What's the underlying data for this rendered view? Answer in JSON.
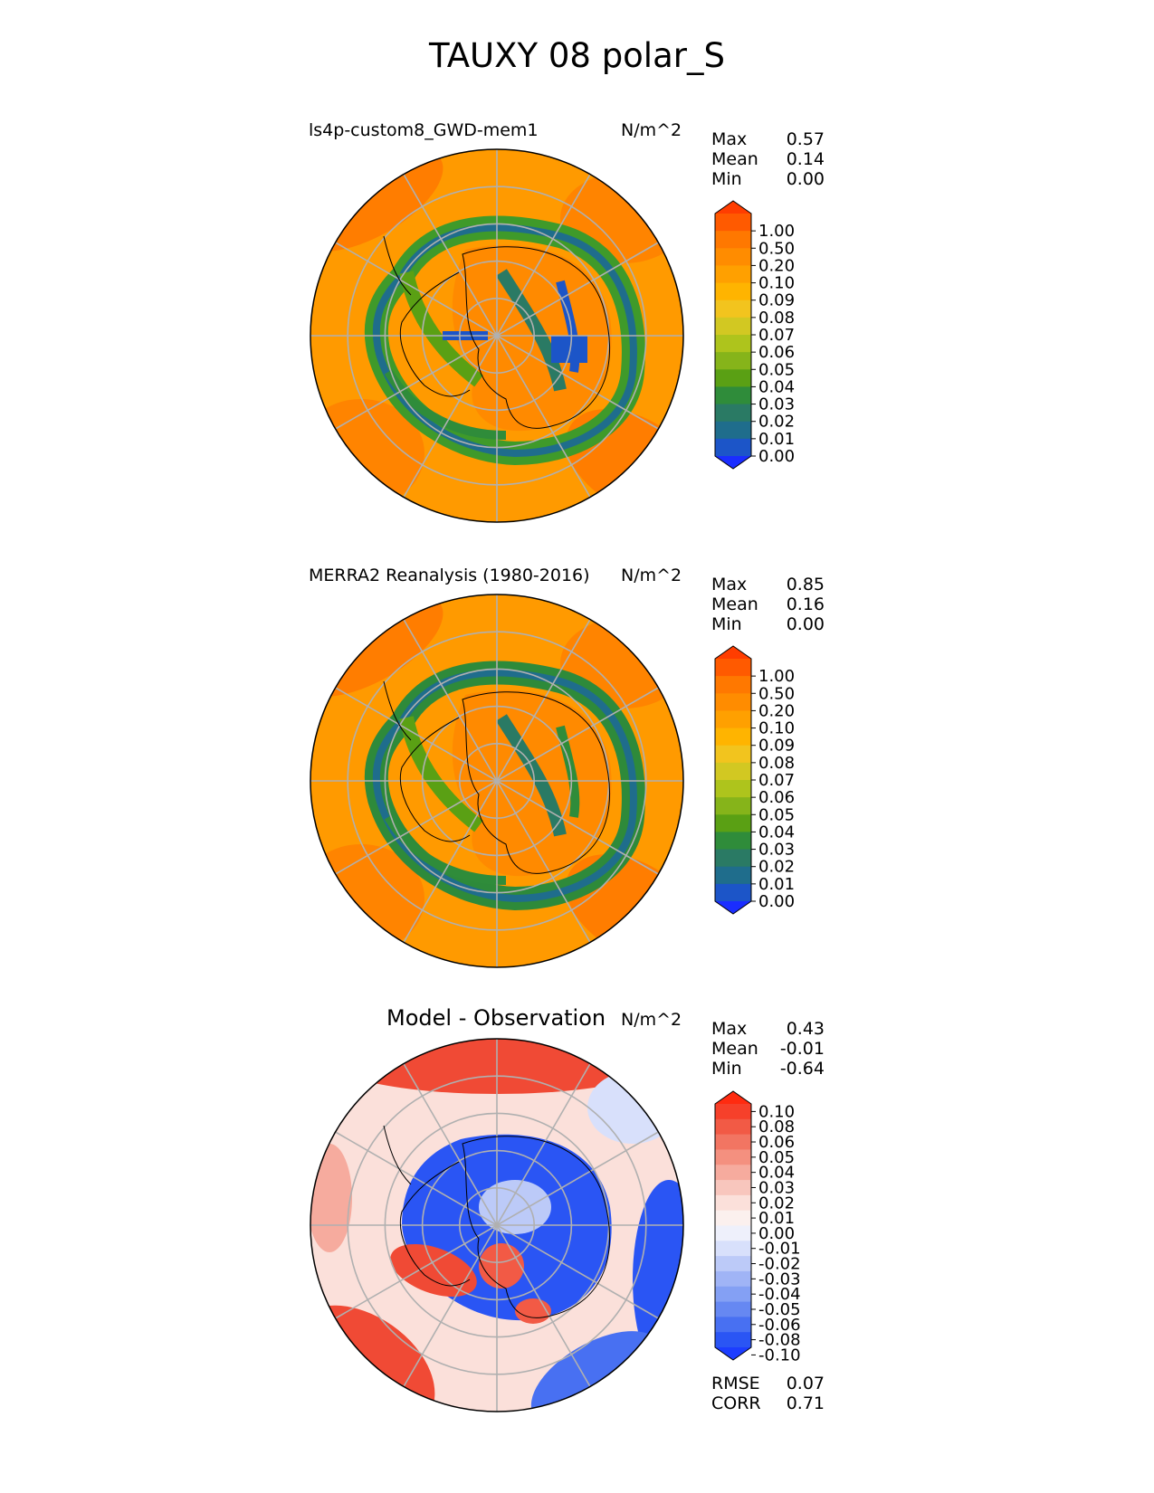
{
  "figure": {
    "title": "TAUXY 08 polar_S",
    "units": "N/m^2"
  },
  "panels": [
    {
      "name": "model",
      "title": "ls4p-custom8_GWD-mem1",
      "stats": {
        "max_label": "Max",
        "max": "0.57",
        "mean_label": "Mean",
        "mean": "0.14",
        "min_label": "Min",
        "min": "0.00"
      }
    },
    {
      "name": "obs",
      "title": "MERRA2 Reanalysis (1980-2016)",
      "stats": {
        "max_label": "Max",
        "max": "0.85",
        "mean_label": "Mean",
        "mean": "0.16",
        "min_label": "Min",
        "min": "0.00"
      }
    },
    {
      "name": "diff",
      "title": "Model - Observation",
      "stats": {
        "max_label": "Max",
        "max": "0.43",
        "mean_label": "Mean",
        "mean": "-0.01",
        "min_label": "Min",
        "min": "-0.64"
      },
      "metrics": {
        "rmse_label": "RMSE",
        "rmse": "0.07",
        "corr_label": "CORR",
        "corr": "0.71"
      }
    }
  ],
  "chart_data": [
    {
      "type": "heatmap",
      "title": "ls4p-custom8_GWD-mem1",
      "projection": "south polar stereographic",
      "colorbar_ticks": [
        "1.00",
        "0.50",
        "0.20",
        "0.10",
        "0.09",
        "0.08",
        "0.07",
        "0.06",
        "0.05",
        "0.04",
        "0.03",
        "0.02",
        "0.01",
        "0.00"
      ],
      "colorbar_colors": [
        "#ff3d00",
        "#ff5a00",
        "#ff7800",
        "#ff8c00",
        "#ffa000",
        "#ffb400",
        "#f2c41e",
        "#d2c822",
        "#aec41c",
        "#86b41a",
        "#5aa014",
        "#2f8c3a",
        "#2a7a64",
        "#1f6d8c",
        "#1c55c8",
        "#1a2dff"
      ],
      "stats": {
        "max": 0.57,
        "mean": 0.14,
        "min": 0.0
      }
    },
    {
      "type": "heatmap",
      "title": "MERRA2 Reanalysis (1980-2016)",
      "projection": "south polar stereographic",
      "colorbar_ticks": [
        "1.00",
        "0.50",
        "0.20",
        "0.10",
        "0.09",
        "0.08",
        "0.07",
        "0.06",
        "0.05",
        "0.04",
        "0.03",
        "0.02",
        "0.01",
        "0.00"
      ],
      "colorbar_colors": [
        "#ff3d00",
        "#ff5a00",
        "#ff7800",
        "#ff8c00",
        "#ffa000",
        "#ffb400",
        "#f2c41e",
        "#d2c822",
        "#aec41c",
        "#86b41a",
        "#5aa014",
        "#2f8c3a",
        "#2a7a64",
        "#1f6d8c",
        "#1c55c8",
        "#1a2dff"
      ],
      "stats": {
        "max": 0.85,
        "mean": 0.16,
        "min": 0.0
      }
    },
    {
      "type": "heatmap",
      "title": "Model - Observation",
      "projection": "south polar stereographic",
      "colorbar_ticks": [
        "0.10",
        "0.08",
        "0.06",
        "0.05",
        "0.04",
        "0.03",
        "0.02",
        "0.01",
        "0.00",
        "-0.01",
        "-0.02",
        "-0.03",
        "-0.04",
        "-0.05",
        "-0.06",
        "-0.08",
        "-0.10"
      ],
      "colorbar_colors": [
        "#ff2b10",
        "#f6402a",
        "#f25a45",
        "#f27562",
        "#f4907f",
        "#f6ab9e",
        "#f8c6bd",
        "#fbe0da",
        "#fbf0ee",
        "#eef0fb",
        "#d8e0fb",
        "#bccaf8",
        "#a0b4f6",
        "#84a0f4",
        "#6688f2",
        "#4870f2",
        "#2a55f4",
        "#1c3dff"
      ],
      "stats": {
        "max": 0.43,
        "mean": -0.01,
        "min": -0.64
      },
      "metrics": {
        "rmse": 0.07,
        "corr": 0.71
      }
    }
  ]
}
